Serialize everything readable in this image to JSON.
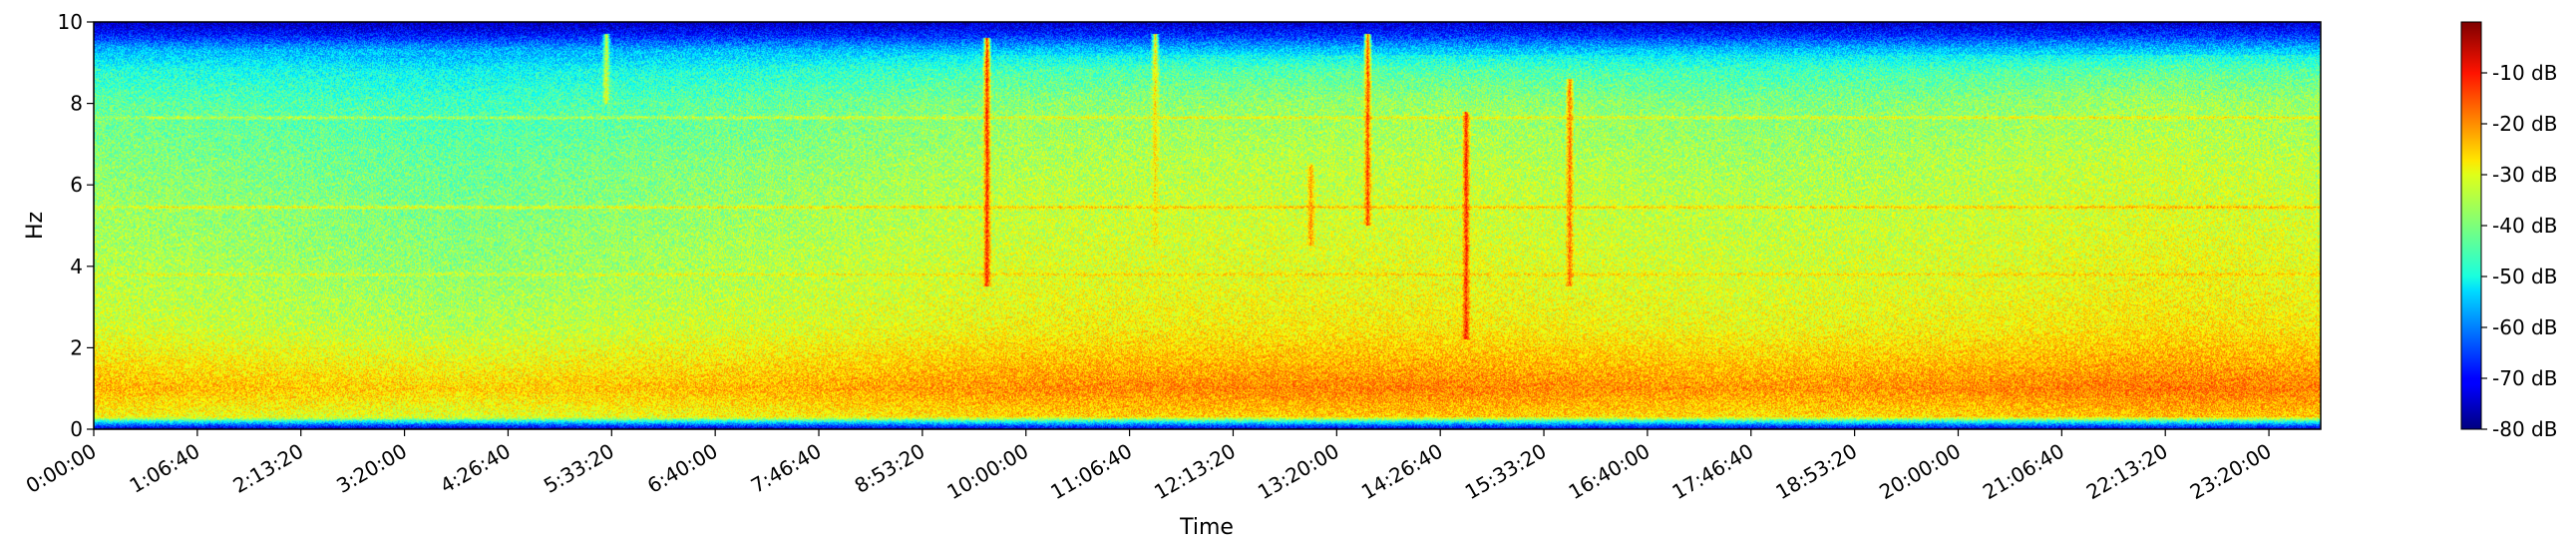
{
  "chart_data": {
    "type": "heatmap",
    "subtype": "spectrogram",
    "title": "",
    "xlabel": "Time",
    "ylabel": "Hz",
    "colormap": "jet",
    "x_ticks": [
      "0:00:00",
      "1:06:40",
      "2:13:20",
      "3:20:00",
      "4:26:40",
      "5:33:20",
      "6:40:00",
      "7:46:40",
      "8:53:20",
      "10:00:00",
      "11:06:40",
      "12:13:20",
      "13:20:00",
      "14:26:40",
      "15:33:20",
      "16:40:00",
      "17:46:40",
      "18:53:20",
      "20:00:00",
      "21:06:40",
      "22:13:20",
      "23:20:00"
    ],
    "x_tick_seconds": [
      0,
      4000,
      8000,
      12000,
      16000,
      20000,
      24000,
      28000,
      32000,
      36000,
      40000,
      44000,
      48000,
      52000,
      56000,
      60000,
      64000,
      68000,
      72000,
      76000,
      80000,
      84000
    ],
    "x_range_seconds": [
      0,
      86000
    ],
    "y_ticks": [
      0,
      2,
      4,
      6,
      8,
      10
    ],
    "ylim": [
      0,
      10
    ],
    "colorbar": {
      "range_db": [
        -80,
        0
      ],
      "ticks": [
        -10,
        -20,
        -30,
        -40,
        -50,
        -60,
        -70,
        -80
      ],
      "tick_labels": [
        "-10 dB",
        "-20 dB",
        "-30 dB",
        "-40 dB",
        "-50 dB",
        "-60 dB",
        "-70 dB",
        "-80 dB"
      ]
    },
    "frequency_profile_db": [
      {
        "hz": 0.0,
        "db": -75
      },
      {
        "hz": 0.12,
        "db": -60
      },
      {
        "hz": 0.3,
        "db": -30
      },
      {
        "hz": 1.0,
        "db": -24
      },
      {
        "hz": 1.8,
        "db": -29
      },
      {
        "hz": 2.5,
        "db": -33
      },
      {
        "hz": 3.5,
        "db": -35
      },
      {
        "hz": 5.0,
        "db": -37
      },
      {
        "hz": 6.5,
        "db": -39
      },
      {
        "hz": 8.0,
        "db": -42
      },
      {
        "hz": 8.8,
        "db": -47
      },
      {
        "hz": 9.3,
        "db": -55
      },
      {
        "hz": 9.7,
        "db": -68
      },
      {
        "hz": 10.0,
        "db": -75
      }
    ],
    "time_profile_db_offset": [
      {
        "t": 0,
        "d": 0
      },
      {
        "t": 14000,
        "d": -3
      },
      {
        "t": 26000,
        "d": 0
      },
      {
        "t": 36000,
        "d": 3
      },
      {
        "t": 52000,
        "d": 4
      },
      {
        "t": 64000,
        "d": 2
      },
      {
        "t": 72000,
        "d": 3
      },
      {
        "t": 80000,
        "d": 5
      },
      {
        "t": 86000,
        "d": 4
      }
    ],
    "harmonic_lines_hz": [
      {
        "hz": 7.65,
        "db_boost": 8
      },
      {
        "hz": 5.45,
        "db_boost": 9
      },
      {
        "hz": 3.8,
        "db_boost": 5
      }
    ],
    "transients": [
      {
        "t": 34500,
        "hz_min": 3.5,
        "hz_max": 9.6,
        "db": -12
      },
      {
        "t": 49200,
        "hz_min": 5.0,
        "hz_max": 9.7,
        "db": -15
      },
      {
        "t": 53000,
        "hz_min": 2.2,
        "hz_max": 7.8,
        "db": -12
      },
      {
        "t": 57000,
        "hz_min": 3.5,
        "hz_max": 8.6,
        "db": -18
      },
      {
        "t": 19800,
        "hz_min": 8.0,
        "hz_max": 9.7,
        "db": -32
      },
      {
        "t": 41000,
        "hz_min": 4.5,
        "hz_max": 9.7,
        "db": -28
      },
      {
        "t": 47000,
        "hz_min": 4.5,
        "hz_max": 6.5,
        "db": -22
      }
    ]
  }
}
